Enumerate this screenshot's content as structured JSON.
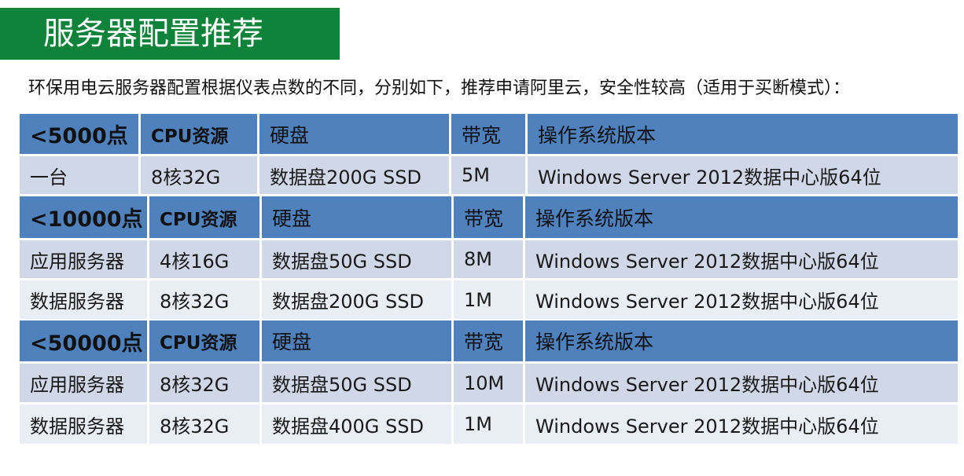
{
  "title": "服务器配置推荐",
  "intro": "环保用电云服务器配置根据仪表点数的不同，分别如下，推荐申请阿里云，安全性较高（适用于买断模式）：",
  "tables": [
    {
      "header": {
        "tier": "<5000点",
        "cpu": "CPU资源",
        "disk": "硬盘",
        "bandwidth": "带宽",
        "os": "操作系统版本"
      },
      "rows": [
        {
          "name": "一台",
          "cpu": "8核32G",
          "disk": "数据盘200G SSD",
          "bandwidth": "5M",
          "os": "Windows Server 2012数据中心版64位"
        }
      ]
    },
    {
      "header": {
        "tier": "<10000点",
        "cpu": "CPU资源",
        "disk": "硬盘",
        "bandwidth": "带宽",
        "os": "操作系统版本"
      },
      "rows": [
        {
          "name": "应用服务器",
          "cpu": "4核16G",
          "disk": "数据盘50G SSD",
          "bandwidth": "8M",
          "os": "Windows Server 2012数据中心版64位"
        },
        {
          "name": "数据服务器",
          "cpu": "8核32G",
          "disk": "数据盘200G SSD",
          "bandwidth": "1M",
          "os": "Windows Server 2012数据中心版64位"
        }
      ]
    },
    {
      "header": {
        "tier": "<50000点",
        "cpu": "CPU资源",
        "disk": "硬盘",
        "bandwidth": "带宽",
        "os": "操作系统版本"
      },
      "rows": [
        {
          "name": "应用服务器",
          "cpu": "8核32G",
          "disk": "数据盘50G SSD",
          "bandwidth": "10M",
          "os": "Windows Server 2012数据中心版64位"
        },
        {
          "name": "数据服务器",
          "cpu": "8核32G",
          "disk": "数据盘400G SSD",
          "bandwidth": "1M",
          "os": "Windows Server 2012数据中心版64位"
        }
      ]
    }
  ]
}
